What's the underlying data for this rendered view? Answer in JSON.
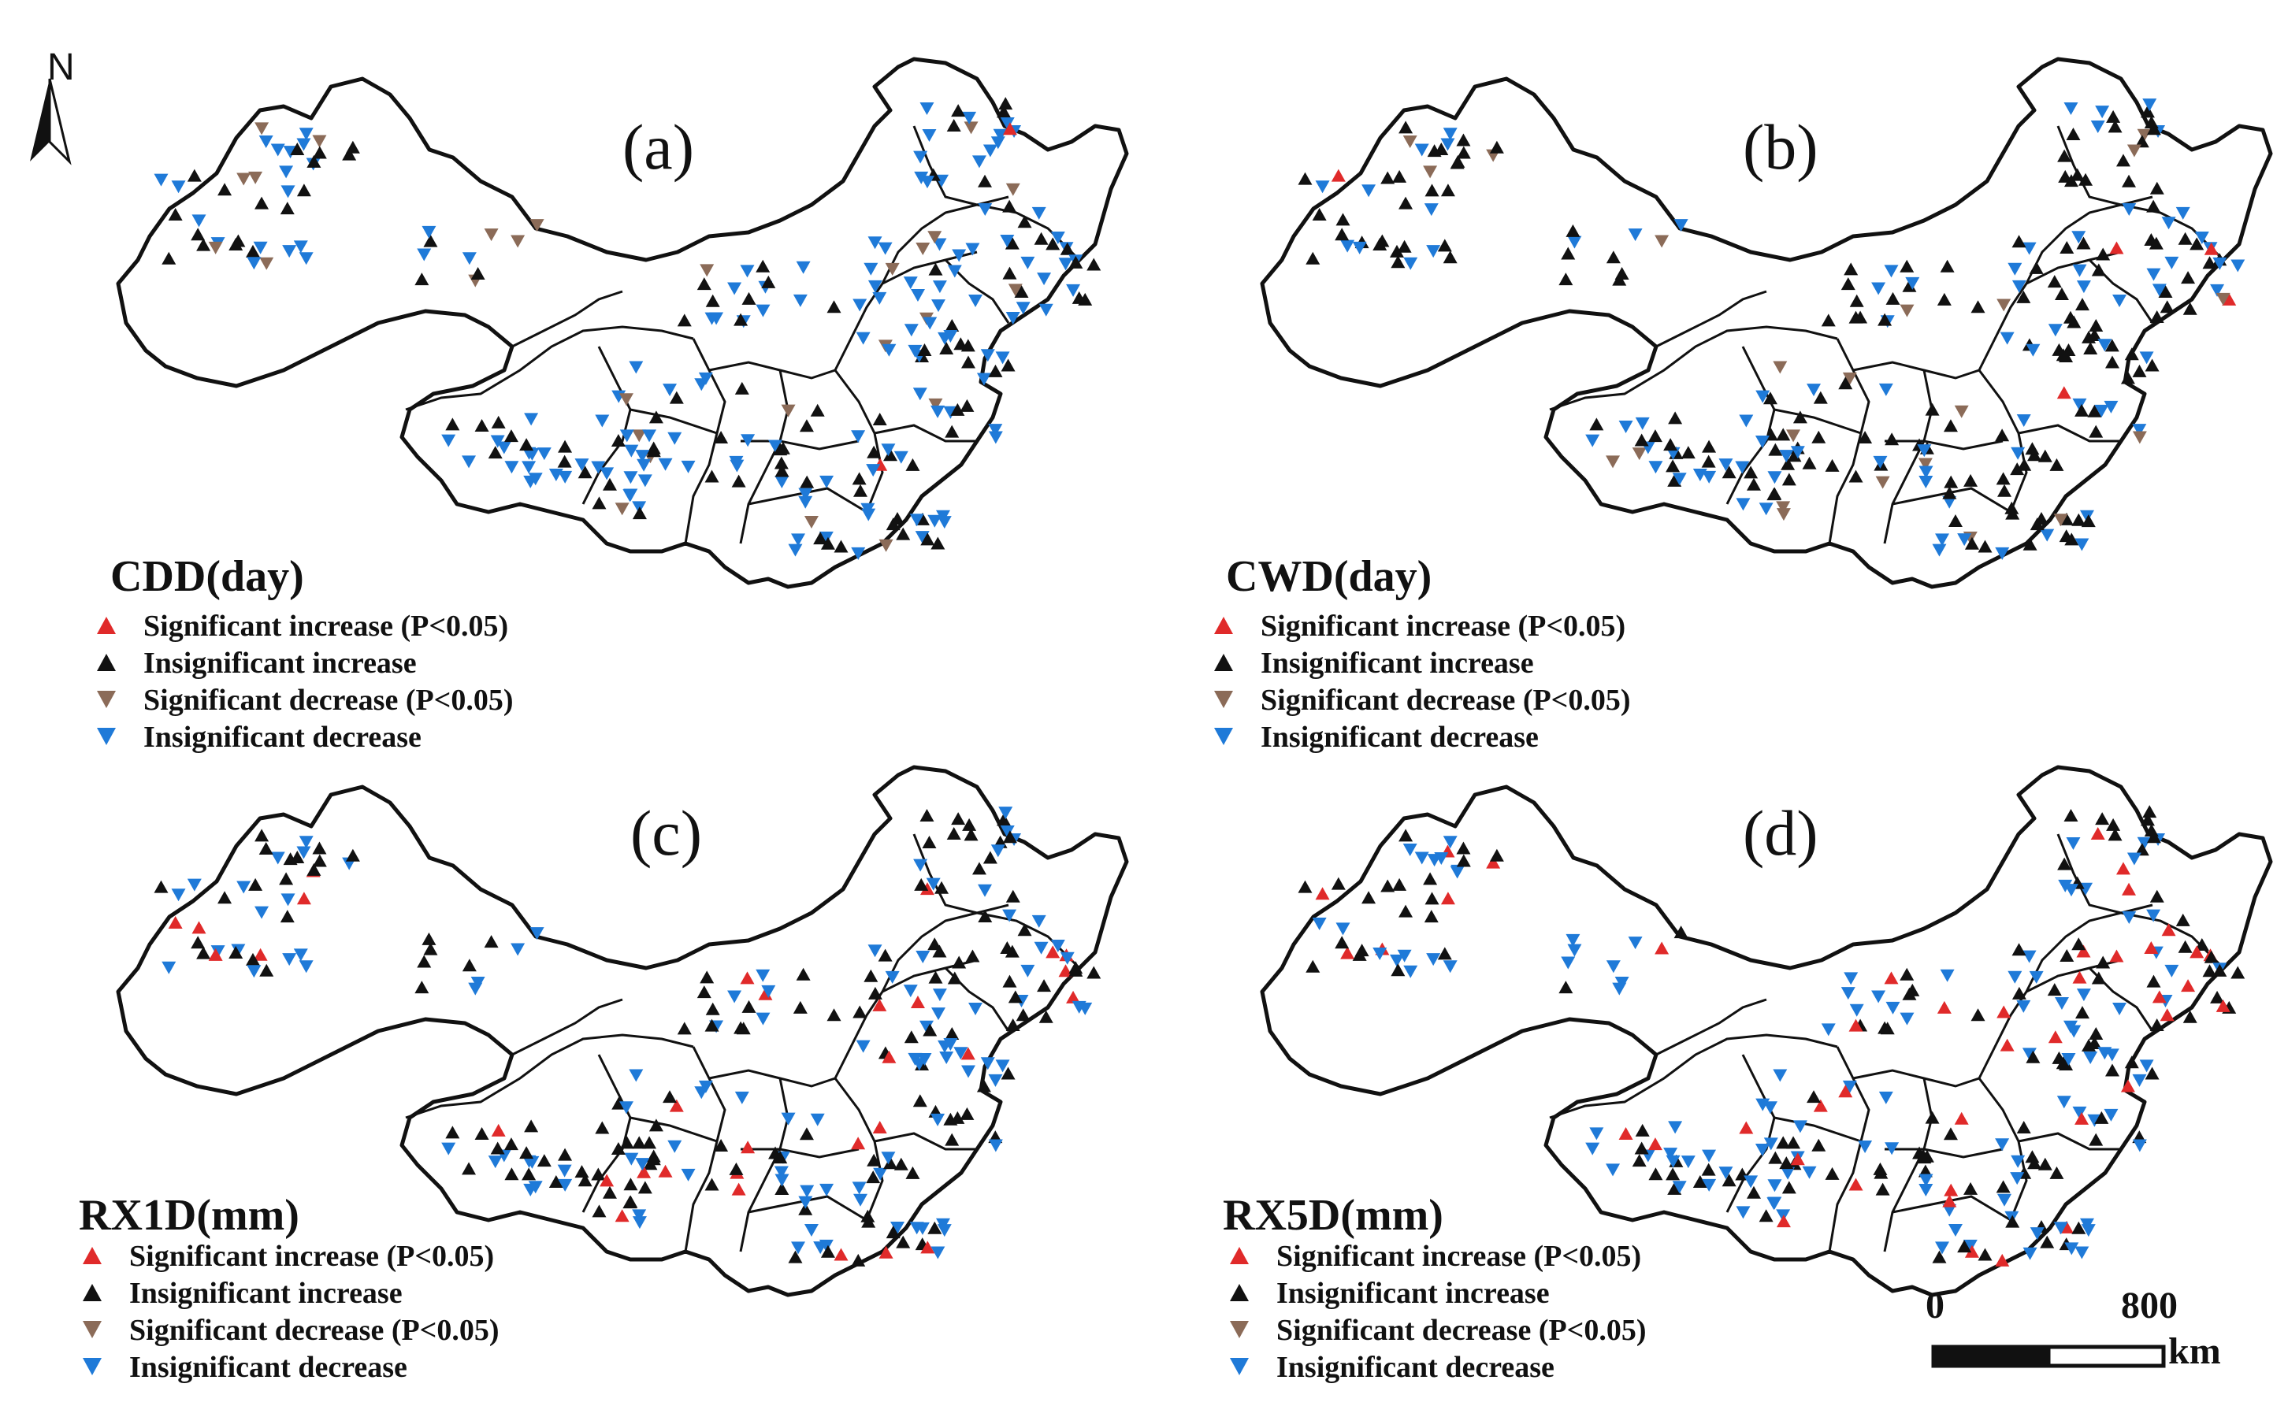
{
  "north_arrow": {
    "letter": "N"
  },
  "colors": {
    "significant_increase": "#e02a2a",
    "insignificant_increase": "#111111",
    "significant_decrease": "#8b6b58",
    "insignificant_decrease": "#1f7ad8",
    "boundary": "#111111"
  },
  "panels": [
    {
      "label": "(a)",
      "index": "CDD(day)",
      "legend": [
        {
          "symbol": "up-red-triangle",
          "text": "Significant increase (P<0.05)"
        },
        {
          "symbol": "up-black-triangle",
          "text": "Insignificant increase"
        },
        {
          "symbol": "down-brown-triangle",
          "text": "Significant decrease (P<0.05)"
        },
        {
          "symbol": "down-blue-triangle",
          "text": "Insignificant decrease"
        }
      ]
    },
    {
      "label": "(b)",
      "index": "CWD(day)",
      "legend": [
        {
          "symbol": "up-red-triangle",
          "text": "Significant increase (P<0.05)"
        },
        {
          "symbol": "up-black-triangle",
          "text": "Insignificant increase"
        },
        {
          "symbol": "down-brown-triangle",
          "text": "Significant decrease (P<0.05)"
        },
        {
          "symbol": "down-blue-triangle",
          "text": "Insignificant decrease"
        }
      ]
    },
    {
      "label": "(c)",
      "index": "RX1D(mm)",
      "legend": [
        {
          "symbol": "up-red-triangle",
          "text": "Significant increase (P<0.05)"
        },
        {
          "symbol": "up-black-triangle",
          "text": "Insignificant increase"
        },
        {
          "symbol": "down-brown-triangle",
          "text": "Significant decrease (P<0.05)"
        },
        {
          "symbol": "down-blue-triangle",
          "text": "Insignificant decrease"
        }
      ]
    },
    {
      "label": "(d)",
      "index": "RX5D(mm)",
      "legend": [
        {
          "symbol": "up-red-triangle",
          "text": "Significant increase (P<0.05)"
        },
        {
          "symbol": "up-black-triangle",
          "text": "Insignificant increase"
        },
        {
          "symbol": "down-brown-triangle",
          "text": "Significant decrease (P<0.05)"
        },
        {
          "symbol": "down-blue-triangle",
          "text": "Insignificant decrease"
        }
      ]
    }
  ],
  "scale_bar": {
    "start": "0",
    "end": "800",
    "unit": "km"
  }
}
